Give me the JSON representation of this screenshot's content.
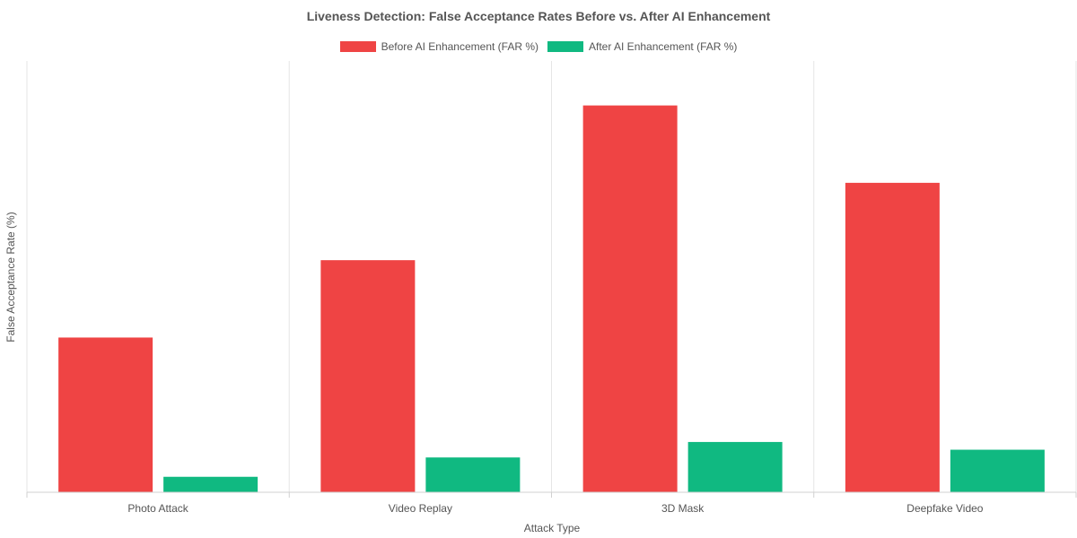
{
  "chart_data": {
    "type": "bar",
    "title": "Liveness Detection: False Acceptance Rates Before vs. After AI Enhancement",
    "xlabel": "Attack Type",
    "ylabel": "False Acceptance Rate (%)",
    "categories": [
      "Photo Attack",
      "Video Replay",
      "3D Mask",
      "Deepfake Video"
    ],
    "series": [
      {
        "name": "Before AI Enhancement (FAR %)",
        "color": "#ef4444",
        "values": [
          8,
          12,
          20,
          16
        ]
      },
      {
        "name": "After AI Enhancement (FAR %)",
        "color": "#10b981",
        "values": [
          0.8,
          1.8,
          2.6,
          2.2
        ]
      }
    ],
    "ylim": [
      0,
      22.3
    ],
    "grid": "vertical",
    "legend_position": "top"
  }
}
